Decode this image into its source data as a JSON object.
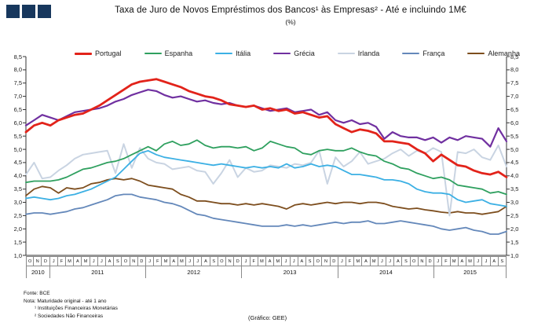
{
  "logo": {
    "squares": 3,
    "color": "#17375d"
  },
  "title": {
    "line1": "Taxa de Juro de Novos Empréstimos dos Bancos¹ às Empresas² - Até e incluindo 1M€",
    "line2": "(%)"
  },
  "chart_data": {
    "type": "line",
    "title": "Taxa de Juro de Novos Empréstimos dos Bancos às Empresas - Até e incluindo 1M€ (%)",
    "legend_position": "top",
    "grid": false,
    "ylim": [
      1.0,
      8.5
    ],
    "ytick_step": 0.5,
    "ytick_labels": [
      "8,5",
      "8,0",
      "7,5",
      "7,0",
      "6,5",
      "6,0",
      "5,5",
      "5,0",
      "4,5",
      "4,0",
      "3,5",
      "3,0",
      "2,5",
      "2,0",
      "1,5",
      "1,0"
    ],
    "months": [
      "O",
      "N",
      "D",
      "J",
      "F",
      "M",
      "A",
      "M",
      "J",
      "J",
      "A",
      "S",
      "O",
      "N",
      "D",
      "J",
      "F",
      "M",
      "A",
      "M",
      "J",
      "J",
      "A",
      "S",
      "O",
      "N",
      "D",
      "J",
      "F",
      "M",
      "A",
      "M",
      "J",
      "J",
      "A",
      "S",
      "O",
      "N",
      "D",
      "J",
      "F",
      "M",
      "A",
      "M",
      "J",
      "J",
      "A",
      "S",
      "O",
      "N",
      "D",
      "J",
      "F",
      "M",
      "A",
      "M",
      "J",
      "J",
      "A",
      "S"
    ],
    "years": [
      {
        "label": "2010",
        "months": 3
      },
      {
        "label": "2011",
        "months": 12
      },
      {
        "label": "2012",
        "months": 12
      },
      {
        "label": "2013",
        "months": 12
      },
      {
        "label": "2014",
        "months": 12
      },
      {
        "label": "2015",
        "months": 9
      }
    ],
    "x_range": "Out 2010 - Set 2015",
    "series": [
      {
        "name": "Portugal",
        "color": "#e2231a",
        "width": 2.8,
        "z": 7,
        "values": [
          5.65,
          5.9,
          6.0,
          5.9,
          6.1,
          6.2,
          6.3,
          6.35,
          6.5,
          6.65,
          6.85,
          7.05,
          7.25,
          7.45,
          7.55,
          7.6,
          7.65,
          7.55,
          7.45,
          7.35,
          7.2,
          7.1,
          7.0,
          6.95,
          6.85,
          6.7,
          6.65,
          6.6,
          6.65,
          6.5,
          6.55,
          6.45,
          6.5,
          6.35,
          6.4,
          6.3,
          6.2,
          6.25,
          5.95,
          5.8,
          5.65,
          5.75,
          5.7,
          5.6,
          5.3,
          5.3,
          5.25,
          5.2,
          5.0,
          4.85,
          4.55,
          4.8,
          4.6,
          4.4,
          4.35,
          4.2,
          4.1,
          4.05,
          4.15,
          3.95
        ]
      },
      {
        "name": "Espanha",
        "color": "#2fa05f",
        "width": 1.8,
        "z": 5,
        "values": [
          3.75,
          3.8,
          3.8,
          3.8,
          3.85,
          3.95,
          4.1,
          4.25,
          4.3,
          4.4,
          4.5,
          4.55,
          4.65,
          4.8,
          4.95,
          5.1,
          4.95,
          5.2,
          5.3,
          5.15,
          5.2,
          5.35,
          5.15,
          5.05,
          5.1,
          5.1,
          5.05,
          5.1,
          4.95,
          5.05,
          5.3,
          5.2,
          5.1,
          5.05,
          4.85,
          4.8,
          4.95,
          5.0,
          4.95,
          4.95,
          5.05,
          4.9,
          4.8,
          4.75,
          4.55,
          4.45,
          4.3,
          4.25,
          4.1,
          4.0,
          3.9,
          3.95,
          3.85,
          3.65,
          3.6,
          3.55,
          3.5,
          3.35,
          3.4,
          3.3
        ]
      },
      {
        "name": "Itália",
        "color": "#3cb0e4",
        "width": 1.8,
        "z": 4,
        "values": [
          3.15,
          3.2,
          3.15,
          3.1,
          3.15,
          3.25,
          3.3,
          3.4,
          3.5,
          3.65,
          3.8,
          3.95,
          4.25,
          4.55,
          4.85,
          4.95,
          4.8,
          4.7,
          4.65,
          4.6,
          4.55,
          4.5,
          4.45,
          4.4,
          4.45,
          4.4,
          4.35,
          4.3,
          4.35,
          4.3,
          4.35,
          4.3,
          4.45,
          4.3,
          4.35,
          4.45,
          4.35,
          4.4,
          4.35,
          4.2,
          4.05,
          4.05,
          4.0,
          3.95,
          3.85,
          3.85,
          3.8,
          3.7,
          3.5,
          3.4,
          3.35,
          3.35,
          3.3,
          3.1,
          3.0,
          3.05,
          3.1,
          2.95,
          2.9,
          2.85
        ]
      },
      {
        "name": "Grécia",
        "color": "#7030a0",
        "width": 2.2,
        "z": 6,
        "values": [
          5.9,
          6.1,
          6.3,
          6.2,
          6.1,
          6.25,
          6.4,
          6.45,
          6.5,
          6.55,
          6.65,
          6.8,
          6.9,
          7.05,
          7.15,
          7.25,
          7.2,
          7.05,
          6.95,
          7.0,
          6.9,
          6.8,
          6.85,
          6.75,
          6.7,
          6.75,
          6.65,
          6.6,
          6.65,
          6.55,
          6.45,
          6.5,
          6.55,
          6.4,
          6.45,
          6.5,
          6.3,
          6.4,
          6.1,
          6.0,
          6.1,
          5.95,
          6.0,
          5.85,
          5.4,
          5.65,
          5.5,
          5.45,
          5.45,
          5.35,
          5.45,
          5.25,
          5.45,
          5.35,
          5.5,
          5.45,
          5.4,
          5.1,
          5.8,
          5.3
        ]
      },
      {
        "name": "Irlanda",
        "color": "#c9d4e2",
        "width": 2.0,
        "z": 3,
        "values": [
          4.05,
          4.5,
          3.9,
          3.95,
          4.2,
          4.4,
          4.65,
          4.8,
          4.85,
          4.9,
          4.95,
          4.1,
          5.2,
          4.3,
          5.05,
          4.65,
          4.5,
          4.45,
          4.25,
          4.3,
          4.35,
          4.2,
          4.15,
          3.7,
          4.1,
          4.6,
          3.95,
          4.3,
          4.15,
          4.2,
          4.4,
          4.35,
          4.3,
          4.45,
          4.4,
          4.5,
          4.95,
          3.7,
          4.7,
          4.35,
          4.55,
          4.9,
          4.45,
          4.55,
          4.65,
          4.85,
          5.0,
          4.75,
          4.95,
          4.85,
          5.05,
          4.9,
          2.5,
          4.9,
          4.85,
          5.0,
          4.7,
          4.6,
          5.15,
          4.35
        ]
      },
      {
        "name": "França",
        "color": "#6488ba",
        "width": 1.8,
        "z": 1,
        "values": [
          2.55,
          2.6,
          2.6,
          2.55,
          2.6,
          2.65,
          2.75,
          2.8,
          2.9,
          3.0,
          3.1,
          3.25,
          3.3,
          3.3,
          3.2,
          3.15,
          3.1,
          3.0,
          2.95,
          2.85,
          2.7,
          2.55,
          2.5,
          2.4,
          2.35,
          2.3,
          2.25,
          2.2,
          2.15,
          2.1,
          2.1,
          2.1,
          2.15,
          2.1,
          2.15,
          2.1,
          2.15,
          2.2,
          2.25,
          2.2,
          2.25,
          2.25,
          2.3,
          2.2,
          2.2,
          2.25,
          2.3,
          2.25,
          2.2,
          2.15,
          2.1,
          2.0,
          1.95,
          2.0,
          2.05,
          1.95,
          1.9,
          1.8,
          1.8,
          1.9
        ]
      },
      {
        "name": "Alemanha",
        "color": "#7d4e1e",
        "width": 1.8,
        "z": 2,
        "values": [
          3.25,
          3.5,
          3.6,
          3.55,
          3.35,
          3.55,
          3.5,
          3.55,
          3.7,
          3.75,
          3.85,
          3.9,
          3.85,
          3.9,
          3.8,
          3.65,
          3.6,
          3.55,
          3.5,
          3.3,
          3.2,
          3.05,
          3.05,
          3.0,
          2.95,
          2.95,
          2.9,
          2.95,
          2.9,
          2.95,
          2.9,
          2.85,
          2.75,
          2.9,
          2.95,
          2.9,
          2.95,
          3.0,
          2.95,
          3.0,
          3.0,
          2.95,
          3.0,
          3.0,
          2.95,
          2.85,
          2.8,
          2.75,
          2.78,
          2.72,
          2.68,
          2.63,
          2.6,
          2.65,
          2.6,
          2.6,
          2.55,
          2.6,
          2.65,
          2.85
        ]
      }
    ]
  },
  "footnotes": {
    "fonte": "Fonte: BCE",
    "nota": "Nota: Maturidade original - até 1 ano",
    "fn1": "¹ Instituições Financeiras Monetárias",
    "fn2": "² Sociedades Não Financeiras"
  },
  "credit": "(Gráfico: GEE)"
}
